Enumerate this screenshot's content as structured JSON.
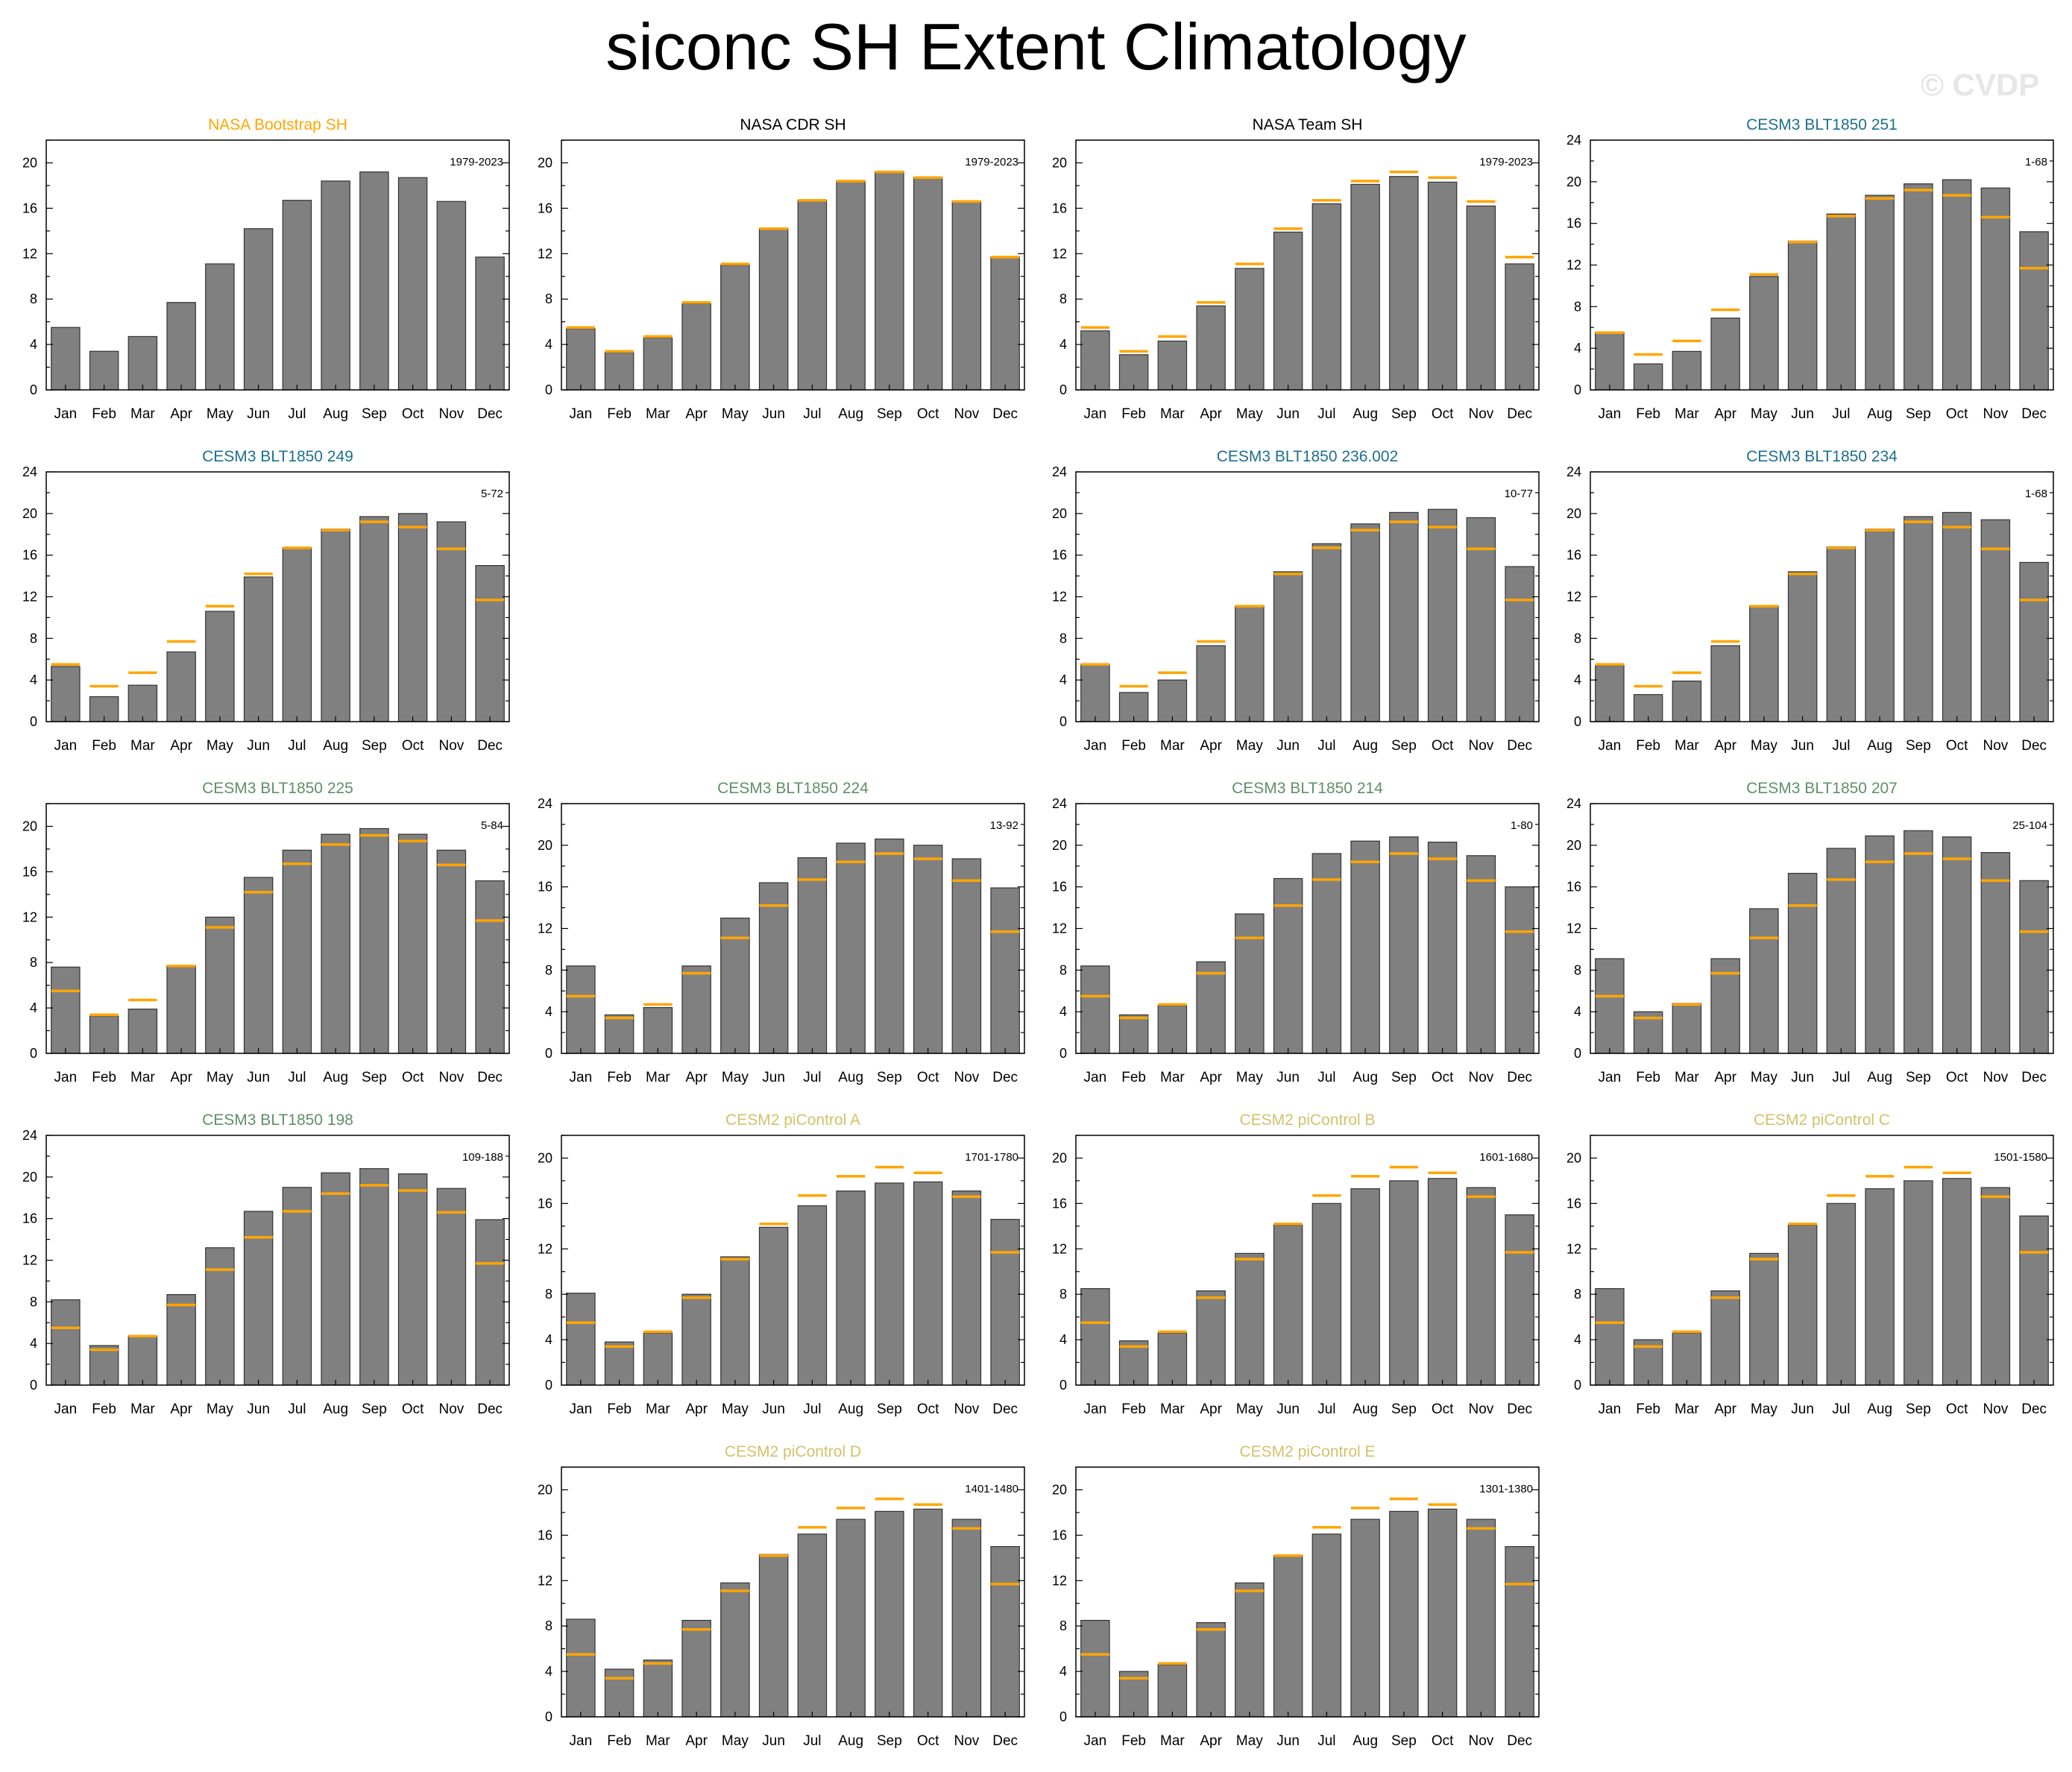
{
  "page": {
    "title": "siconc SH Extent Climatology",
    "watermark": "© CVDP"
  },
  "style": {
    "bar_color": "#808080",
    "bar_outline": "#333333",
    "obs_line_color": "#ffa500",
    "title_colors": {
      "bootstrap": "#ffa500",
      "obs_black": "#000000",
      "blue": "#1d6f8c",
      "green": "#5f8f68",
      "khaki": "#d2c26a"
    }
  },
  "chart_data": [
    {
      "type": "bar",
      "title": "NASA Bootstrap SH",
      "title_color": "#ffa500",
      "period": "1979-2023",
      "categories": [
        "Jan",
        "Feb",
        "Mar",
        "Apr",
        "May",
        "Jun",
        "Jul",
        "Aug",
        "Sep",
        "Oct",
        "Nov",
        "Dec"
      ],
      "values": [
        5.5,
        3.4,
        4.7,
        7.7,
        11.1,
        14.2,
        16.7,
        18.4,
        19.2,
        18.7,
        16.6,
        11.7
      ],
      "reference": null,
      "ylim": [
        0,
        22
      ],
      "yticks": [
        0,
        4,
        8,
        12,
        16,
        20
      ]
    },
    {
      "type": "bar",
      "title": "NASA CDR SH",
      "title_color": "#000000",
      "period": "1979-2023",
      "categories": [
        "Jan",
        "Feb",
        "Mar",
        "Apr",
        "May",
        "Jun",
        "Jul",
        "Aug",
        "Sep",
        "Oct",
        "Nov",
        "Dec"
      ],
      "values": [
        5.4,
        3.3,
        4.6,
        7.6,
        11.0,
        14.2,
        16.7,
        18.4,
        19.2,
        18.7,
        16.6,
        11.7
      ],
      "reference": [
        5.5,
        3.4,
        4.7,
        7.7,
        11.1,
        14.2,
        16.7,
        18.4,
        19.2,
        18.7,
        16.6,
        11.7
      ],
      "ylim": [
        0,
        22
      ],
      "yticks": [
        0,
        4,
        8,
        12,
        16,
        20
      ]
    },
    {
      "type": "bar",
      "title": "NASA Team SH",
      "title_color": "#000000",
      "period": "1979-2023",
      "categories": [
        "Jan",
        "Feb",
        "Mar",
        "Apr",
        "May",
        "Jun",
        "Jul",
        "Aug",
        "Sep",
        "Oct",
        "Nov",
        "Dec"
      ],
      "values": [
        5.2,
        3.1,
        4.3,
        7.4,
        10.7,
        13.9,
        16.4,
        18.1,
        18.8,
        18.3,
        16.2,
        11.1
      ],
      "reference": [
        5.5,
        3.4,
        4.7,
        7.7,
        11.1,
        14.2,
        16.7,
        18.4,
        19.2,
        18.7,
        16.6,
        11.7
      ],
      "ylim": [
        0,
        22
      ],
      "yticks": [
        0,
        4,
        8,
        12,
        16,
        20
      ]
    },
    {
      "type": "bar",
      "title": "CESM3 BLT1850 251",
      "title_color": "#1d6f8c",
      "period": "1-68",
      "categories": [
        "Jan",
        "Feb",
        "Mar",
        "Apr",
        "May",
        "Jun",
        "Jul",
        "Aug",
        "Sep",
        "Oct",
        "Nov",
        "Dec"
      ],
      "values": [
        5.5,
        2.5,
        3.7,
        6.9,
        10.9,
        14.3,
        16.9,
        18.7,
        19.8,
        20.2,
        19.4,
        15.2
      ],
      "reference": [
        5.5,
        3.4,
        4.7,
        7.7,
        11.1,
        14.2,
        16.7,
        18.4,
        19.2,
        18.7,
        16.6,
        11.7
      ],
      "ylim": [
        0,
        24
      ],
      "yticks": [
        0,
        4,
        8,
        12,
        16,
        20,
        24
      ]
    },
    {
      "type": "bar",
      "title": "CESM3 BLT1850 249",
      "title_color": "#1d6f8c",
      "period": "5-72",
      "categories": [
        "Jan",
        "Feb",
        "Mar",
        "Apr",
        "May",
        "Jun",
        "Jul",
        "Aug",
        "Sep",
        "Oct",
        "Nov",
        "Dec"
      ],
      "values": [
        5.3,
        2.4,
        3.5,
        6.7,
        10.6,
        13.9,
        16.7,
        18.5,
        19.7,
        20.0,
        19.2,
        15.0
      ],
      "reference": [
        5.5,
        3.4,
        4.7,
        7.7,
        11.1,
        14.2,
        16.7,
        18.4,
        19.2,
        18.7,
        16.6,
        11.7
      ],
      "ylim": [
        0,
        24
      ],
      "yticks": [
        0,
        4,
        8,
        12,
        16,
        20,
        24
      ]
    },
    {
      "type": "bar",
      "title": "CESM3 BLT1850 236.002",
      "title_color": "#1d6f8c",
      "period": "10-77",
      "categories": [
        "Jan",
        "Feb",
        "Mar",
        "Apr",
        "May",
        "Jun",
        "Jul",
        "Aug",
        "Sep",
        "Oct",
        "Nov",
        "Dec"
      ],
      "values": [
        5.5,
        2.8,
        4.0,
        7.3,
        11.1,
        14.4,
        17.1,
        19.0,
        20.1,
        20.4,
        19.6,
        14.9
      ],
      "reference": [
        5.5,
        3.4,
        4.7,
        7.7,
        11.1,
        14.2,
        16.7,
        18.4,
        19.2,
        18.7,
        16.6,
        11.7
      ],
      "ylim": [
        0,
        24
      ],
      "yticks": [
        0,
        4,
        8,
        12,
        16,
        20,
        24
      ]
    },
    {
      "type": "bar",
      "title": "CESM3 BLT1850 234",
      "title_color": "#1d6f8c",
      "period": "1-68",
      "categories": [
        "Jan",
        "Feb",
        "Mar",
        "Apr",
        "May",
        "Jun",
        "Jul",
        "Aug",
        "Sep",
        "Oct",
        "Nov",
        "Dec"
      ],
      "values": [
        5.4,
        2.6,
        3.9,
        7.3,
        11.1,
        14.4,
        16.8,
        18.5,
        19.7,
        20.1,
        19.4,
        15.3
      ],
      "reference": [
        5.5,
        3.4,
        4.7,
        7.7,
        11.1,
        14.2,
        16.7,
        18.4,
        19.2,
        18.7,
        16.6,
        11.7
      ],
      "ylim": [
        0,
        24
      ],
      "yticks": [
        0,
        4,
        8,
        12,
        16,
        20,
        24
      ]
    },
    {
      "type": "bar",
      "title": "CESM3 BLT1850 225",
      "title_color": "#5f8f68",
      "period": "5-84",
      "categories": [
        "Jan",
        "Feb",
        "Mar",
        "Apr",
        "May",
        "Jun",
        "Jul",
        "Aug",
        "Sep",
        "Oct",
        "Nov",
        "Dec"
      ],
      "values": [
        7.6,
        3.3,
        3.9,
        7.7,
        12.0,
        15.5,
        17.9,
        19.3,
        19.8,
        19.3,
        17.9,
        15.2
      ],
      "reference": [
        5.5,
        3.4,
        4.7,
        7.7,
        11.1,
        14.2,
        16.7,
        18.4,
        19.2,
        18.7,
        16.6,
        11.7
      ],
      "ylim": [
        0,
        22
      ],
      "yticks": [
        0,
        4,
        8,
        12,
        16,
        20
      ]
    },
    {
      "type": "bar",
      "title": "CESM3 BLT1850 224",
      "title_color": "#5f8f68",
      "period": "13-92",
      "categories": [
        "Jan",
        "Feb",
        "Mar",
        "Apr",
        "May",
        "Jun",
        "Jul",
        "Aug",
        "Sep",
        "Oct",
        "Nov",
        "Dec"
      ],
      "values": [
        8.4,
        3.7,
        4.4,
        8.4,
        13.0,
        16.4,
        18.8,
        20.2,
        20.6,
        20.0,
        18.7,
        15.9
      ],
      "reference": [
        5.5,
        3.4,
        4.7,
        7.7,
        11.1,
        14.2,
        16.7,
        18.4,
        19.2,
        18.7,
        16.6,
        11.7
      ],
      "ylim": [
        0,
        24
      ],
      "yticks": [
        0,
        4,
        8,
        12,
        16,
        20,
        24
      ]
    },
    {
      "type": "bar",
      "title": "CESM3 BLT1850 214",
      "title_color": "#5f8f68",
      "period": "1-80",
      "categories": [
        "Jan",
        "Feb",
        "Mar",
        "Apr",
        "May",
        "Jun",
        "Jul",
        "Aug",
        "Sep",
        "Oct",
        "Nov",
        "Dec"
      ],
      "values": [
        8.4,
        3.7,
        4.6,
        8.8,
        13.4,
        16.8,
        19.2,
        20.4,
        20.8,
        20.3,
        19.0,
        16.0
      ],
      "reference": [
        5.5,
        3.4,
        4.7,
        7.7,
        11.1,
        14.2,
        16.7,
        18.4,
        19.2,
        18.7,
        16.6,
        11.7
      ],
      "ylim": [
        0,
        24
      ],
      "yticks": [
        0,
        4,
        8,
        12,
        16,
        20,
        24
      ]
    },
    {
      "type": "bar",
      "title": "CESM3 BLT1850 207",
      "title_color": "#5f8f68",
      "period": "25-104",
      "categories": [
        "Jan",
        "Feb",
        "Mar",
        "Apr",
        "May",
        "Jun",
        "Jul",
        "Aug",
        "Sep",
        "Oct",
        "Nov",
        "Dec"
      ],
      "values": [
        9.1,
        4.0,
        4.8,
        9.1,
        13.9,
        17.3,
        19.7,
        20.9,
        21.4,
        20.8,
        19.3,
        16.6
      ],
      "reference": [
        5.5,
        3.4,
        4.7,
        7.7,
        11.1,
        14.2,
        16.7,
        18.4,
        19.2,
        18.7,
        16.6,
        11.7
      ],
      "ylim": [
        0,
        24
      ],
      "yticks": [
        0,
        4,
        8,
        12,
        16,
        20,
        24
      ]
    },
    {
      "type": "bar",
      "title": "CESM3 BLT1850 198",
      "title_color": "#5f8f68",
      "period": "109-188",
      "categories": [
        "Jan",
        "Feb",
        "Mar",
        "Apr",
        "May",
        "Jun",
        "Jul",
        "Aug",
        "Sep",
        "Oct",
        "Nov",
        "Dec"
      ],
      "values": [
        8.2,
        3.8,
        4.7,
        8.7,
        13.2,
        16.7,
        19.0,
        20.4,
        20.8,
        20.3,
        18.9,
        15.9
      ],
      "reference": [
        5.5,
        3.4,
        4.7,
        7.7,
        11.1,
        14.2,
        16.7,
        18.4,
        19.2,
        18.7,
        16.6,
        11.7
      ],
      "ylim": [
        0,
        24
      ],
      "yticks": [
        0,
        4,
        8,
        12,
        16,
        20,
        24
      ]
    },
    {
      "type": "bar",
      "title": "CESM2 piControl A",
      "title_color": "#d2c26a",
      "period": "1701-1780",
      "categories": [
        "Jan",
        "Feb",
        "Mar",
        "Apr",
        "May",
        "Jun",
        "Jul",
        "Aug",
        "Sep",
        "Oct",
        "Nov",
        "Dec"
      ],
      "values": [
        8.1,
        3.8,
        4.6,
        8.0,
        11.3,
        13.9,
        15.8,
        17.1,
        17.8,
        17.9,
        17.1,
        14.6
      ],
      "reference": [
        5.5,
        3.4,
        4.7,
        7.7,
        11.1,
        14.2,
        16.7,
        18.4,
        19.2,
        18.7,
        16.6,
        11.7
      ],
      "ylim": [
        0,
        22
      ],
      "yticks": [
        0,
        4,
        8,
        12,
        16,
        20
      ]
    },
    {
      "type": "bar",
      "title": "CESM2 piControl B",
      "title_color": "#d2c26a",
      "period": "1601-1680",
      "categories": [
        "Jan",
        "Feb",
        "Mar",
        "Apr",
        "May",
        "Jun",
        "Jul",
        "Aug",
        "Sep",
        "Oct",
        "Nov",
        "Dec"
      ],
      "values": [
        8.5,
        3.9,
        4.6,
        8.3,
        11.6,
        14.1,
        16.0,
        17.3,
        18.0,
        18.2,
        17.4,
        15.0
      ],
      "reference": [
        5.5,
        3.4,
        4.7,
        7.7,
        11.1,
        14.2,
        16.7,
        18.4,
        19.2,
        18.7,
        16.6,
        11.7
      ],
      "ylim": [
        0,
        22
      ],
      "yticks": [
        0,
        4,
        8,
        12,
        16,
        20
      ]
    },
    {
      "type": "bar",
      "title": "CESM2 piControl C",
      "title_color": "#d2c26a",
      "period": "1501-1580",
      "categories": [
        "Jan",
        "Feb",
        "Mar",
        "Apr",
        "May",
        "Jun",
        "Jul",
        "Aug",
        "Sep",
        "Oct",
        "Nov",
        "Dec"
      ],
      "values": [
        8.5,
        4.0,
        4.6,
        8.3,
        11.6,
        14.1,
        16.0,
        17.3,
        18.0,
        18.2,
        17.4,
        14.9
      ],
      "reference": [
        5.5,
        3.4,
        4.7,
        7.7,
        11.1,
        14.2,
        16.7,
        18.4,
        19.2,
        18.7,
        16.6,
        11.7
      ],
      "ylim": [
        0,
        22
      ],
      "yticks": [
        0,
        4,
        8,
        12,
        16,
        20
      ]
    },
    {
      "type": "bar",
      "title": "CESM2 piControl D",
      "title_color": "#d2c26a",
      "period": "1401-1480",
      "categories": [
        "Jan",
        "Feb",
        "Mar",
        "Apr",
        "May",
        "Jun",
        "Jul",
        "Aug",
        "Sep",
        "Oct",
        "Nov",
        "Dec"
      ],
      "values": [
        8.6,
        4.2,
        5.0,
        8.5,
        11.8,
        14.3,
        16.1,
        17.4,
        18.1,
        18.3,
        17.4,
        15.0
      ],
      "reference": [
        5.5,
        3.4,
        4.7,
        7.7,
        11.1,
        14.2,
        16.7,
        18.4,
        19.2,
        18.7,
        16.6,
        11.7
      ],
      "ylim": [
        0,
        22
      ],
      "yticks": [
        0,
        4,
        8,
        12,
        16,
        20
      ]
    },
    {
      "type": "bar",
      "title": "CESM2 piControl E",
      "title_color": "#d2c26a",
      "period": "1301-1380",
      "categories": [
        "Jan",
        "Feb",
        "Mar",
        "Apr",
        "May",
        "Jun",
        "Jul",
        "Aug",
        "Sep",
        "Oct",
        "Nov",
        "Dec"
      ],
      "values": [
        8.5,
        4.0,
        4.6,
        8.3,
        11.8,
        14.2,
        16.1,
        17.4,
        18.1,
        18.3,
        17.4,
        15.0
      ],
      "reference": [
        5.5,
        3.4,
        4.7,
        7.7,
        11.1,
        14.2,
        16.7,
        18.4,
        19.2,
        18.7,
        16.6,
        11.7
      ],
      "ylim": [
        0,
        22
      ],
      "yticks": [
        0,
        4,
        8,
        12,
        16,
        20
      ]
    }
  ]
}
